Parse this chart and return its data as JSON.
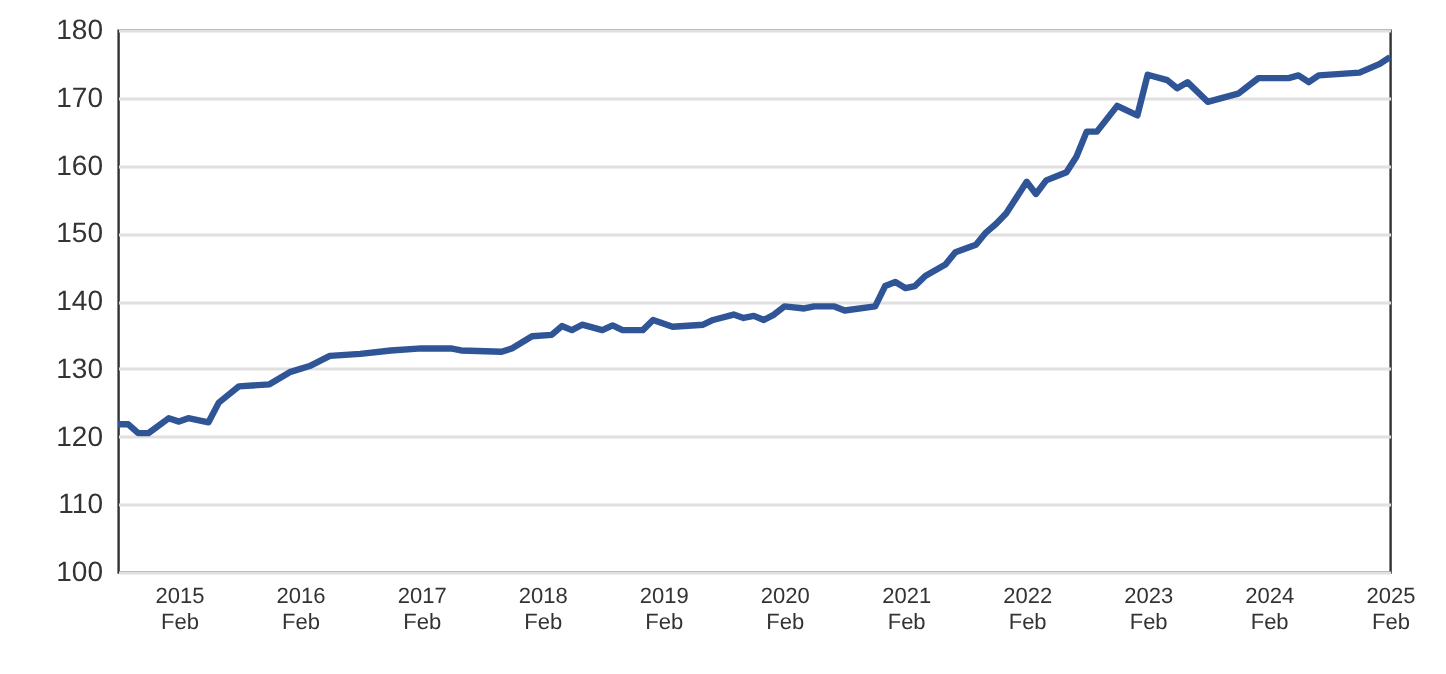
{
  "chart_data": {
    "type": "line",
    "x": [
      "2014-08",
      "2014-09",
      "2014-10",
      "2014-11",
      "2015-01",
      "2015-02",
      "2015-03",
      "2015-05",
      "2015-06",
      "2015-08",
      "2015-11",
      "2016-01",
      "2016-03",
      "2016-05",
      "2016-08",
      "2016-11",
      "2017-02",
      "2017-05",
      "2017-06",
      "2017-10",
      "2017-11",
      "2018-01",
      "2018-03",
      "2018-04",
      "2018-05",
      "2018-06",
      "2018-08",
      "2018-09",
      "2018-10",
      "2018-12",
      "2019-01",
      "2019-03",
      "2019-06",
      "2019-07",
      "2019-09",
      "2019-10",
      "2019-11",
      "2019-12",
      "2020-01",
      "2020-02",
      "2020-04",
      "2020-05",
      "2020-07",
      "2020-08",
      "2020-11",
      "2020-12",
      "2021-01",
      "2021-02",
      "2021-03",
      "2021-04",
      "2021-06",
      "2021-07",
      "2021-09",
      "2021-10",
      "2021-11",
      "2021-12",
      "2022-02",
      "2022-03",
      "2022-04",
      "2022-06",
      "2022-07",
      "2022-08",
      "2022-09",
      "2022-11",
      "2023-01",
      "2023-02",
      "2023-04",
      "2023-05",
      "2023-06",
      "2023-08",
      "2023-11",
      "2024-01",
      "2024-04",
      "2024-05",
      "2024-06",
      "2024-07",
      "2024-11",
      "2025-01",
      "2025-02"
    ],
    "series": [
      {
        "color": "#2f5597",
        "values": [
          121.8,
          121.8,
          120.5,
          120.5,
          122.7,
          122.2,
          122.7,
          122.1,
          125,
          127.4,
          127.7,
          129.5,
          130.4,
          131.9,
          132.2,
          132.7,
          133,
          133,
          132.7,
          132.5,
          133,
          134.8,
          135,
          136.3,
          135.7,
          136.5,
          135.7,
          136.4,
          135.7,
          135.7,
          137.2,
          136.2,
          136.5,
          137.2,
          138,
          137.5,
          137.8,
          137.2,
          138,
          139.2,
          138.9,
          139.2,
          139.2,
          138.6,
          139.2,
          142.2,
          142.8,
          141.9,
          142.2,
          143.7,
          145.4,
          147.2,
          148.3,
          150.1,
          151.4,
          152.9,
          157.6,
          155.8,
          157.8,
          159,
          161.3,
          165,
          165,
          168.8,
          167.4,
          173.4,
          172.6,
          171.4,
          172.3,
          169.4,
          170.6,
          172.9,
          172.9,
          173.3,
          172.3,
          173.3,
          173.7,
          175,
          176
        ]
      }
    ],
    "xlim": [
      "2014-08",
      "2025-02"
    ],
    "xticks": [
      {
        "value": "2015-02",
        "label": "2015\nFeb"
      },
      {
        "value": "2016-02",
        "label": "2016\nFeb"
      },
      {
        "value": "2017-02",
        "label": "2017\nFeb"
      },
      {
        "value": "2018-02",
        "label": "2018\nFeb"
      },
      {
        "value": "2019-02",
        "label": "2019\nFeb"
      },
      {
        "value": "2020-02",
        "label": "2020\nFeb"
      },
      {
        "value": "2021-02",
        "label": "2021\nFeb"
      },
      {
        "value": "2022-02",
        "label": "2022\nFeb"
      },
      {
        "value": "2023-02",
        "label": "2023\nFeb"
      },
      {
        "value": "2024-02",
        "label": "2024\nFeb"
      },
      {
        "value": "2025-02",
        "label": "2025\nFeb"
      }
    ],
    "ylim": [
      100,
      180
    ],
    "yticks": [
      100,
      110,
      120,
      130,
      140,
      150,
      160,
      170,
      180
    ],
    "grid": "y",
    "line_style": "solid"
  }
}
